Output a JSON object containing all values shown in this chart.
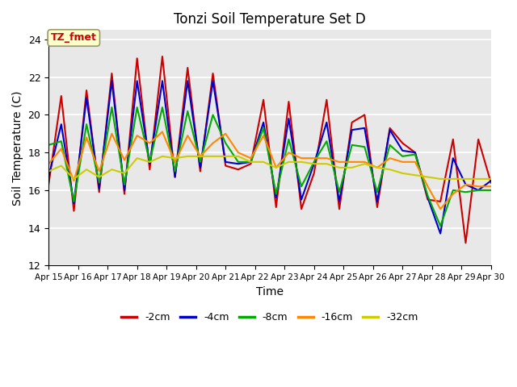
{
  "title": "Tonzi Soil Temperature Set D",
  "xlabel": "Time",
  "ylabel": "Soil Temperature (C)",
  "ylim": [
    12,
    24.5
  ],
  "yticks": [
    12,
    14,
    16,
    18,
    20,
    22,
    24
  ],
  "xtick_labels": [
    "Apr 15",
    "Apr 16",
    "Apr 17",
    "Apr 18",
    "Apr 19",
    "Apr 20",
    "Apr 21",
    "Apr 22",
    "Apr 23",
    "Apr 24",
    "Apr 25",
    "Apr 26",
    "Apr 27",
    "Apr 28",
    "Apr 29",
    "Apr 30"
  ],
  "legend_labels": [
    "-2cm",
    "-4cm",
    "-8cm",
    "-16cm",
    "-32cm"
  ],
  "legend_colors": [
    "#cc0000",
    "#0000cc",
    "#00aa00",
    "#ff8800",
    "#cccc00"
  ],
  "annotation_text": "TZ_fmet",
  "annotation_color": "#cc0000",
  "annotation_bg": "#ffffcc",
  "bg_color": "#e8e8e8",
  "series": {
    "d2cm": [
      16.3,
      21.0,
      14.9,
      21.3,
      15.9,
      22.2,
      15.8,
      23.0,
      17.1,
      23.1,
      16.7,
      22.5,
      17.0,
      22.2,
      17.3,
      17.1,
      17.4,
      20.8,
      15.1,
      20.7,
      15.0,
      16.9,
      20.8,
      15.0,
      19.6,
      20.0,
      15.1,
      19.3,
      18.5,
      18.0,
      15.5,
      15.4,
      18.7,
      13.2,
      18.7,
      16.4
    ],
    "d4cm": [
      16.7,
      19.5,
      15.3,
      20.9,
      16.1,
      21.8,
      16.0,
      21.8,
      17.4,
      21.8,
      16.7,
      21.8,
      17.2,
      21.8,
      17.5,
      17.4,
      17.5,
      19.6,
      15.6,
      19.8,
      15.5,
      17.4,
      19.6,
      15.4,
      19.2,
      19.3,
      15.4,
      19.2,
      18.1,
      18.0,
      15.6,
      13.7,
      17.7,
      16.3,
      16.0,
      16.5
    ],
    "d8cm": [
      18.4,
      18.6,
      15.4,
      19.5,
      16.4,
      20.4,
      16.3,
      20.4,
      17.5,
      20.4,
      17.0,
      20.2,
      17.5,
      20.0,
      18.5,
      17.5,
      17.5,
      19.3,
      15.8,
      18.7,
      16.2,
      17.5,
      18.6,
      15.9,
      18.4,
      18.3,
      15.9,
      18.4,
      17.8,
      17.9,
      15.7,
      14.1,
      16.0,
      15.9,
      16.0,
      16.0
    ],
    "d16cm": [
      17.4,
      18.2,
      16.5,
      18.8,
      17.0,
      19.0,
      17.6,
      18.9,
      18.5,
      19.1,
      17.5,
      18.9,
      17.8,
      18.5,
      19.0,
      18.0,
      17.7,
      18.9,
      17.2,
      18.0,
      17.7,
      17.7,
      17.7,
      17.5,
      17.5,
      17.5,
      17.2,
      17.7,
      17.5,
      17.5,
      16.2,
      15.0,
      15.8,
      16.3,
      16.2,
      16.2
    ],
    "d32cm": [
      17.0,
      17.3,
      16.6,
      17.1,
      16.7,
      17.1,
      16.9,
      17.7,
      17.5,
      17.8,
      17.7,
      17.8,
      17.8,
      17.8,
      17.8,
      17.8,
      17.5,
      17.5,
      17.2,
      17.5,
      17.5,
      17.4,
      17.4,
      17.2,
      17.2,
      17.4,
      17.2,
      17.1,
      16.9,
      16.8,
      16.7,
      16.6,
      16.6,
      16.6,
      16.6,
      16.6
    ]
  }
}
